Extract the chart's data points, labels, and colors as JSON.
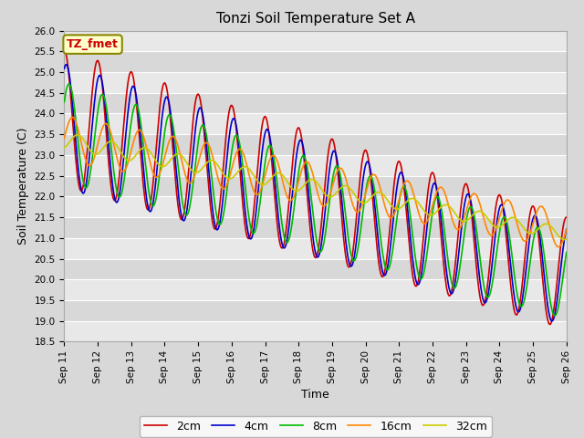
{
  "title": "Tonzi Soil Temperature Set A",
  "xlabel": "Time",
  "ylabel": "Soil Temperature (C)",
  "ylim": [
    18.5,
    26.0
  ],
  "yticks": [
    18.5,
    19.0,
    19.5,
    20.0,
    20.5,
    21.0,
    21.5,
    22.0,
    22.5,
    23.0,
    23.5,
    24.0,
    24.5,
    25.0,
    25.5,
    26.0
  ],
  "xtick_labels": [
    "Sep 11",
    "Sep 12",
    "Sep 13",
    "Sep 14",
    "Sep 15",
    "Sep 16",
    "Sep 17",
    "Sep 18",
    "Sep 19",
    "Sep 20",
    "Sep 21",
    "Sep 22",
    "Sep 23",
    "Sep 24",
    "Sep 25",
    "Sep 26"
  ],
  "series_colors": [
    "#cc0000",
    "#0000cc",
    "#00bb00",
    "#ff8800",
    "#cccc00"
  ],
  "series_labels": [
    "2cm",
    "4cm",
    "8cm",
    "16cm",
    "32cm"
  ],
  "annotation_text": "TZ_fmet",
  "annotation_color": "#cc0000",
  "annotation_bg": "#ffffcc",
  "annotation_edge": "#888800",
  "fig_bg": "#d8d8d8",
  "plot_bg_light": "#e8e8e8",
  "plot_bg_dark": "#d8d8d8",
  "grid_color": "#ffffff",
  "title_fontsize": 11,
  "axis_fontsize": 9,
  "tick_fontsize": 7.5,
  "legend_fontsize": 9,
  "linewidth": 1.2
}
